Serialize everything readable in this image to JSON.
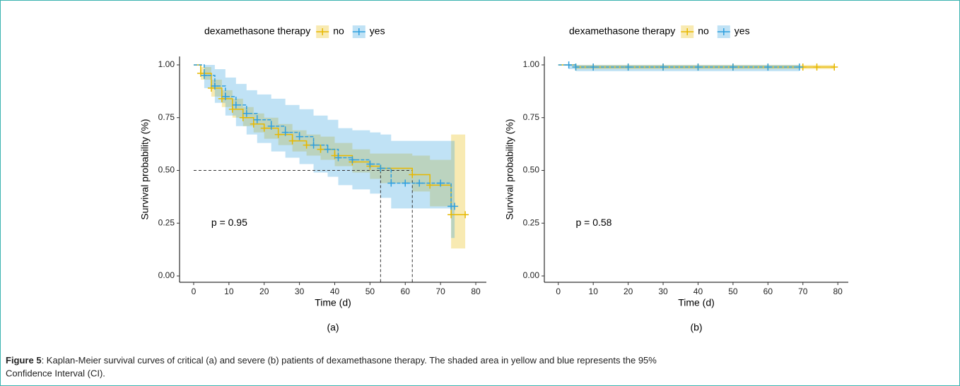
{
  "chart_data": [
    {
      "type": "line",
      "step": true,
      "panel_label": "(a)",
      "legend_title": "dexamethasone therapy",
      "x_label": "Time (d)",
      "y_label": "Survival probability (%)",
      "annotation": "p = 0.95",
      "xlim": [
        -4,
        83
      ],
      "xticks": [
        0,
        10,
        20,
        30,
        40,
        50,
        60,
        70,
        80
      ],
      "ylim": [
        -0.03,
        1.04
      ],
      "yticks": [
        {
          "value": 0,
          "label": "0.00"
        },
        {
          "value": 0.25,
          "label": "0.25"
        },
        {
          "value": 0.5,
          "label": "0.50"
        },
        {
          "value": 0.75,
          "label": "0.75"
        },
        {
          "value": 1,
          "label": "1.00"
        }
      ],
      "median": {
        "y": 0.5,
        "x": [
          53,
          62
        ]
      },
      "series": [
        {
          "name": "no",
          "color": "#E7B800",
          "x": [
            0,
            2,
            5,
            8,
            11,
            14,
            17,
            20,
            24,
            28,
            32,
            36,
            40,
            45,
            50,
            53,
            62,
            67,
            73,
            77
          ],
          "values": [
            1.0,
            0.96,
            0.89,
            0.84,
            0.79,
            0.75,
            0.72,
            0.7,
            0.67,
            0.64,
            0.62,
            0.6,
            0.57,
            0.54,
            0.52,
            0.51,
            0.48,
            0.43,
            0.29,
            0.29
          ],
          "lower": [
            1.0,
            0.93,
            0.85,
            0.8,
            0.75,
            0.71,
            0.68,
            0.65,
            0.62,
            0.59,
            0.57,
            0.55,
            0.52,
            0.49,
            0.46,
            0.44,
            0.4,
            0.33,
            0.13,
            0.13
          ],
          "upper": [
            1.0,
            0.99,
            0.93,
            0.88,
            0.84,
            0.8,
            0.77,
            0.75,
            0.72,
            0.69,
            0.67,
            0.66,
            0.63,
            0.6,
            0.58,
            0.58,
            0.57,
            0.55,
            0.67,
            0.67
          ]
        },
        {
          "name": "yes",
          "color": "#2E9FDF",
          "x": [
            0,
            3,
            6,
            9,
            12,
            15,
            18,
            22,
            26,
            30,
            34,
            38,
            41,
            45,
            50,
            53,
            56,
            60,
            64,
            70,
            73,
            74
          ],
          "values": [
            1.0,
            0.95,
            0.9,
            0.85,
            0.81,
            0.77,
            0.74,
            0.71,
            0.68,
            0.66,
            0.62,
            0.6,
            0.56,
            0.55,
            0.53,
            0.51,
            0.44,
            0.44,
            0.44,
            0.44,
            0.33,
            0.33
          ],
          "lower": [
            1.0,
            0.89,
            0.82,
            0.76,
            0.71,
            0.67,
            0.63,
            0.59,
            0.56,
            0.53,
            0.49,
            0.47,
            0.43,
            0.41,
            0.39,
            0.37,
            0.32,
            0.32,
            0.32,
            0.32,
            0.18,
            0.18
          ],
          "upper": [
            1.0,
            1.0,
            0.98,
            0.94,
            0.91,
            0.88,
            0.86,
            0.84,
            0.81,
            0.79,
            0.76,
            0.74,
            0.7,
            0.69,
            0.68,
            0.67,
            0.64,
            0.64,
            0.64,
            0.64,
            0.64,
            0.64
          ]
        }
      ]
    },
    {
      "type": "line",
      "step": true,
      "panel_label": "(b)",
      "legend_title": "dexamethasone therapy",
      "x_label": "Time (d)",
      "y_label": "Survival probability (%)",
      "annotation": "p = 0.58",
      "xlim": [
        -4,
        83
      ],
      "xticks": [
        0,
        10,
        20,
        30,
        40,
        50,
        60,
        70,
        80
      ],
      "ylim": [
        -0.03,
        1.04
      ],
      "yticks": [
        {
          "value": 0,
          "label": "0.00"
        },
        {
          "value": 0.25,
          "label": "0.25"
        },
        {
          "value": 0.5,
          "label": "0.50"
        },
        {
          "value": 0.75,
          "label": "0.75"
        },
        {
          "value": 1,
          "label": "1.00"
        }
      ],
      "series": [
        {
          "name": "no",
          "color": "#E7B800",
          "x": [
            0,
            5,
            10,
            20,
            30,
            40,
            50,
            60,
            70,
            74,
            79
          ],
          "values": [
            1.0,
            0.99,
            0.99,
            0.99,
            0.99,
            0.99,
            0.99,
            0.99,
            0.99,
            0.99,
            0.99
          ],
          "lower": [
            1.0,
            0.98,
            0.98,
            0.98,
            0.98,
            0.98,
            0.98,
            0.98,
            0.98,
            0.98,
            0.98
          ],
          "upper": [
            1.0,
            1.0,
            1.0,
            1.0,
            1.0,
            1.0,
            1.0,
            1.0,
            1.0,
            1.0,
            1.0
          ]
        },
        {
          "name": "yes",
          "color": "#2E9FDF",
          "x": [
            0,
            3,
            5,
            10,
            20,
            30,
            40,
            50,
            60,
            69
          ],
          "values": [
            1.0,
            1.0,
            0.99,
            0.99,
            0.99,
            0.99,
            0.99,
            0.99,
            0.99,
            0.99
          ],
          "lower": [
            1.0,
            0.98,
            0.97,
            0.97,
            0.97,
            0.97,
            0.97,
            0.97,
            0.97,
            0.97
          ],
          "upper": [
            1.0,
            1.0,
            1.0,
            1.0,
            1.0,
            1.0,
            1.0,
            1.0,
            1.0,
            1.0
          ]
        }
      ]
    }
  ],
  "caption": {
    "label": "Figure 5",
    "text": [
      ": Kaplan-Meier survival curves of critical (a) and severe (b) patients of dexamethasone therapy. The shaded area in yellow and blue represents the 95%",
      "Confidence Interval (CI)."
    ]
  }
}
